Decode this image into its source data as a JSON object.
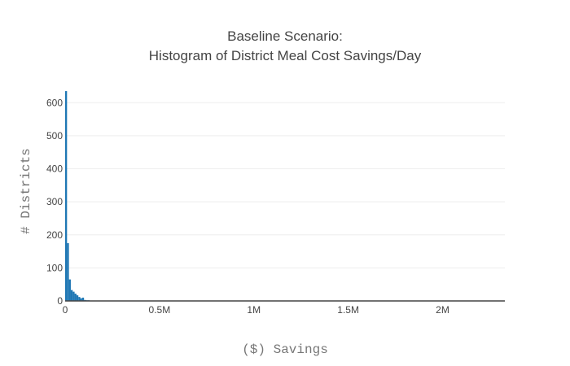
{
  "chart_data": {
    "type": "bar",
    "title_lines": [
      "Baseline Scenario:",
      "Histogram of District Meal Cost Savings/Day"
    ],
    "xlabel": "($) Savings",
    "ylabel": "# Districts",
    "xlim": [
      0,
      2330000
    ],
    "ylim": [
      0,
      640
    ],
    "bin_width": 10000,
    "x_ticks": [
      {
        "value": 0,
        "label": "0"
      },
      {
        "value": 500000,
        "label": "0.5M"
      },
      {
        "value": 1000000,
        "label": "1M"
      },
      {
        "value": 1500000,
        "label": "1.5M"
      },
      {
        "value": 2000000,
        "label": "2M"
      }
    ],
    "y_ticks": [
      {
        "value": 0,
        "label": "0"
      },
      {
        "value": 100,
        "label": "100"
      },
      {
        "value": 200,
        "label": "200"
      },
      {
        "value": 300,
        "label": "300"
      },
      {
        "value": 400,
        "label": "400"
      },
      {
        "value": 500,
        "label": "500"
      },
      {
        "value": 600,
        "label": "600"
      }
    ],
    "grid": true,
    "legend": "none",
    "bar_color": "#1f77b4",
    "bins": [
      {
        "x0": 0,
        "count": 635
      },
      {
        "x0": 10000,
        "count": 175
      },
      {
        "x0": 20000,
        "count": 65
      },
      {
        "x0": 30000,
        "count": 33
      },
      {
        "x0": 40000,
        "count": 28
      },
      {
        "x0": 50000,
        "count": 22
      },
      {
        "x0": 60000,
        "count": 17
      },
      {
        "x0": 70000,
        "count": 12
      },
      {
        "x0": 80000,
        "count": 8
      },
      {
        "x0": 90000,
        "count": 10
      },
      {
        "x0": 100000,
        "count": 3
      },
      {
        "x0": 110000,
        "count": 2
      },
      {
        "x0": 120000,
        "count": 2
      },
      {
        "x0": 130000,
        "count": 1
      },
      {
        "x0": 140000,
        "count": 1
      },
      {
        "x0": 150000,
        "count": 1
      },
      {
        "x0": 170000,
        "count": 1
      },
      {
        "x0": 200000,
        "count": 1
      },
      {
        "x0": 220000,
        "count": 1
      }
    ]
  }
}
